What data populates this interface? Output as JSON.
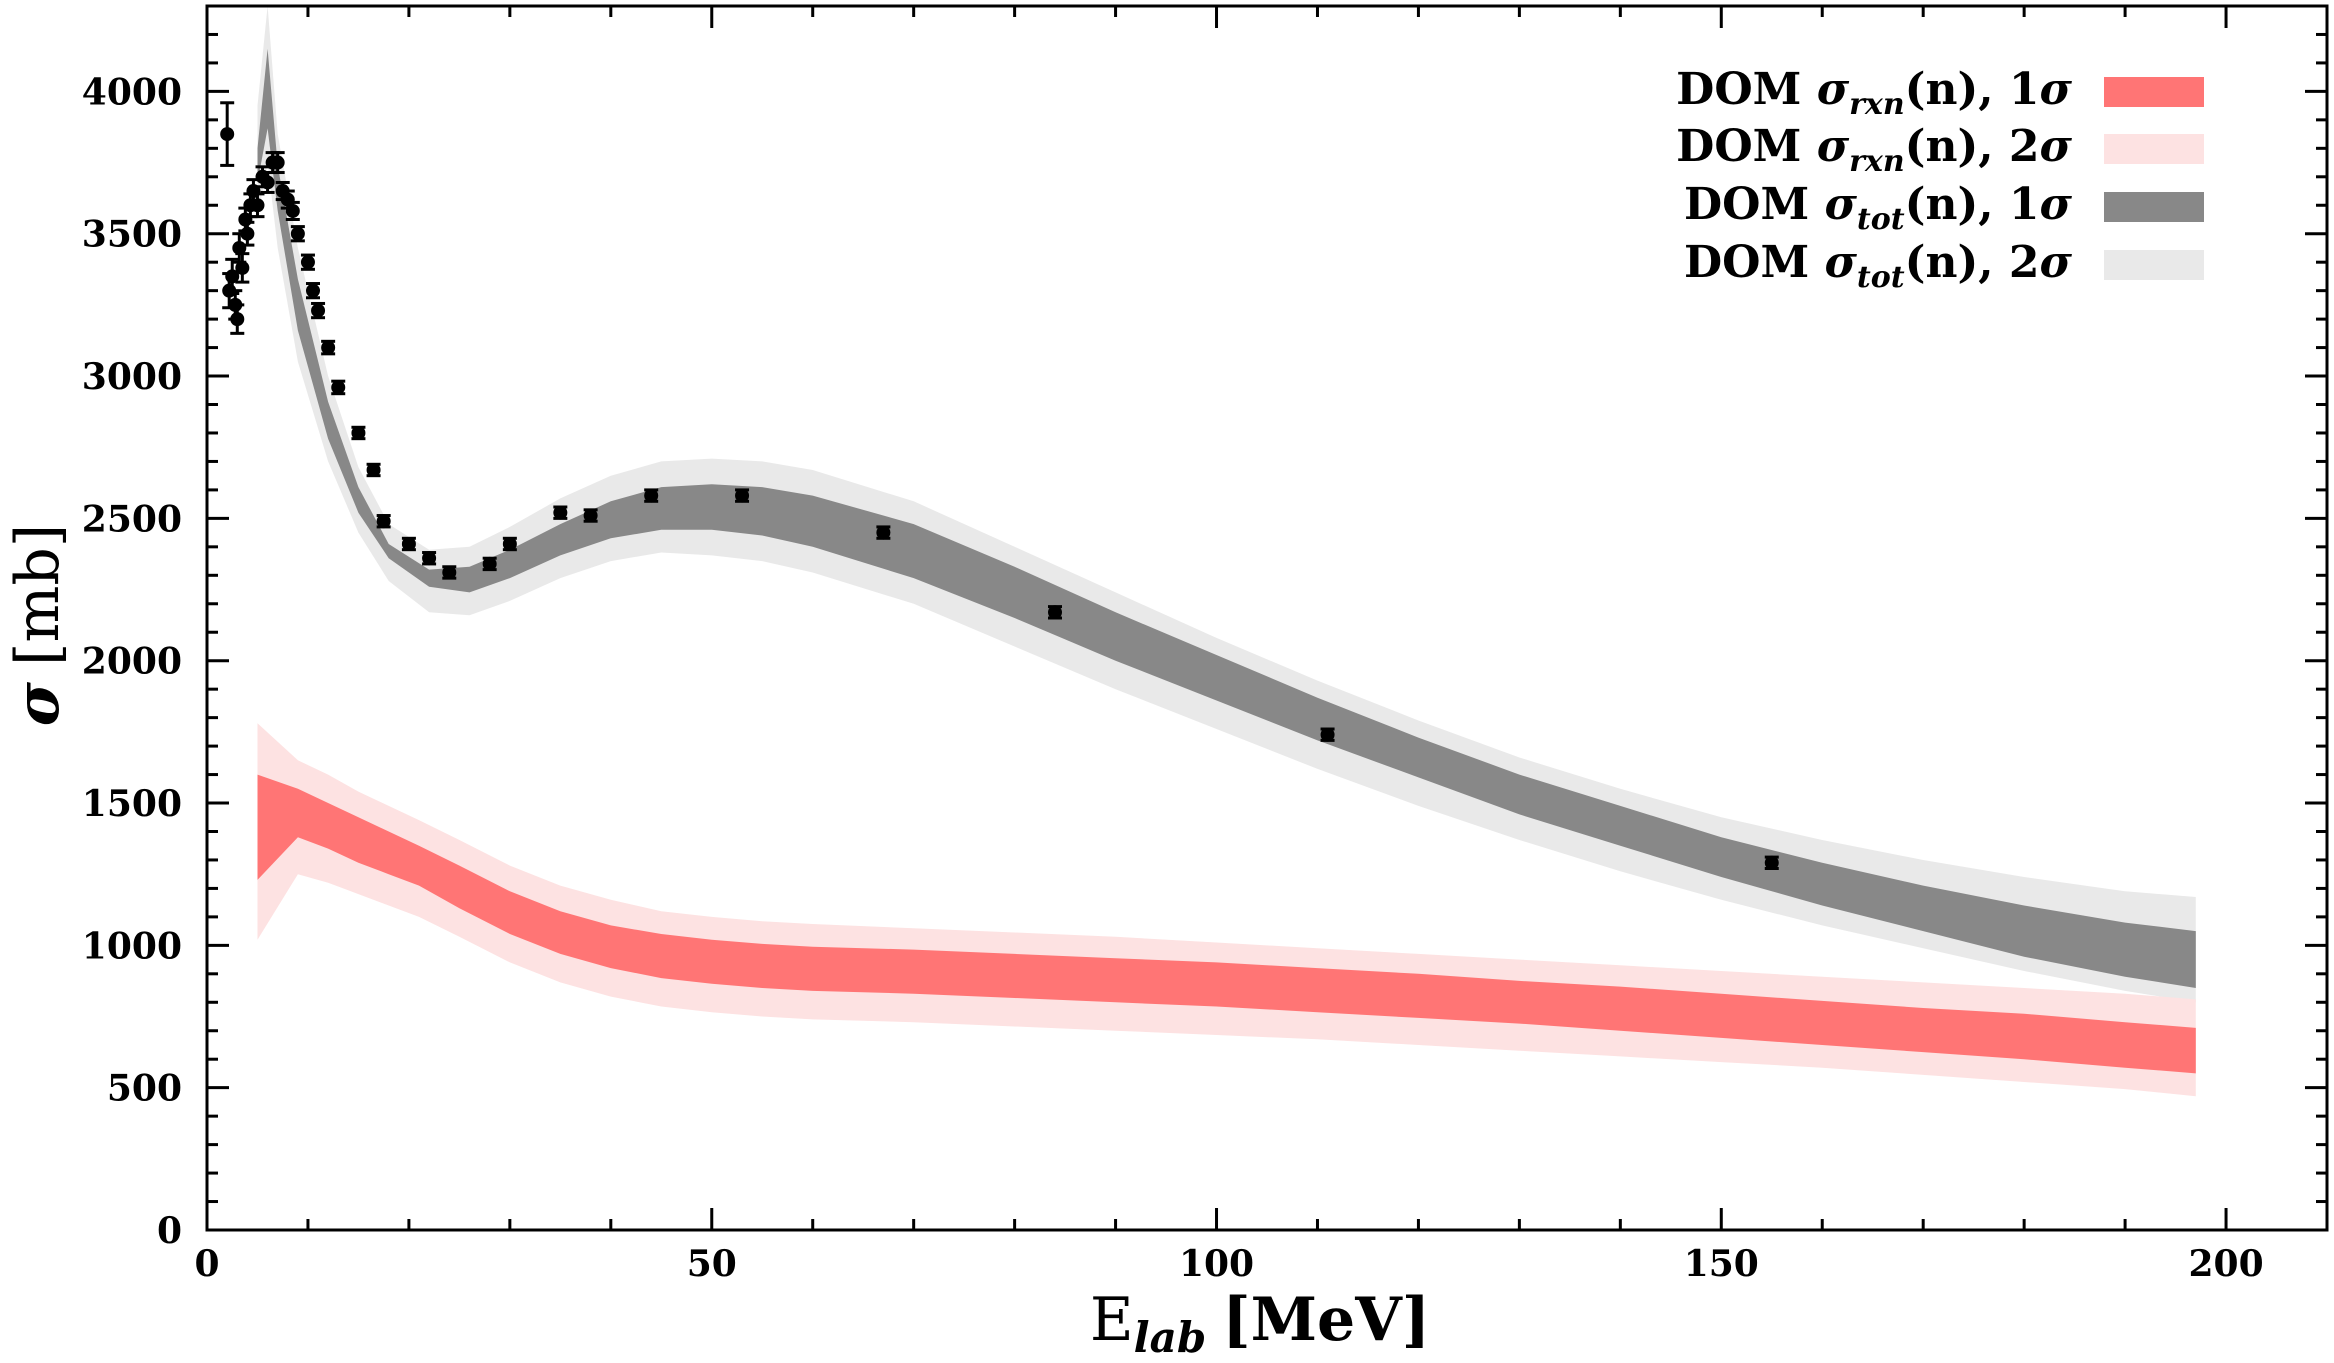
{
  "chart_data": {
    "type": "area",
    "xlabel": "E",
    "xlabel_sub": "lab",
    "xlabel_unit": "[MeV]",
    "ylabel": "σ",
    "ylabel_unit": "[mb]",
    "xlim": [
      0,
      210
    ],
    "ylim": [
      0,
      4300
    ],
    "xticks": [
      0,
      50,
      100,
      150,
      200
    ],
    "yticks": [
      0,
      500,
      1000,
      1500,
      2000,
      2500,
      3000,
      3500,
      4000
    ],
    "grid": false,
    "legend_position": "top-right",
    "colors": {
      "rxn_1sigma": "#ff7575",
      "rxn_2sigma": "#fde2e2",
      "tot_1sigma": "#888888",
      "tot_2sigma": "#e9e9e9",
      "data": "#000000"
    },
    "legend": [
      {
        "prefix": "DOM ",
        "sub": "rxn",
        "suffix": "(n), 1",
        "key": "rxn_1sigma"
      },
      {
        "prefix": "DOM ",
        "sub": "rxn",
        "suffix": "(n), 2",
        "key": "rxn_2sigma"
      },
      {
        "prefix": "DOM ",
        "sub": "tot",
        "suffix": "(n), 1",
        "key": "tot_1sigma"
      },
      {
        "prefix": "DOM ",
        "sub": "tot",
        "suffix": "(n), 2",
        "key": "tot_2sigma"
      }
    ],
    "bands": [
      {
        "key": "tot_2sigma",
        "x": [
          5,
          6,
          7,
          9,
          12,
          15,
          18,
          22,
          26,
          30,
          35,
          40,
          45,
          50,
          55,
          60,
          70,
          80,
          90,
          100,
          110,
          120,
          130,
          140,
          150,
          160,
          170,
          180,
          190,
          197
        ],
        "lower": [
          3550,
          3750,
          3450,
          3050,
          2700,
          2450,
          2280,
          2170,
          2160,
          2210,
          2290,
          2350,
          2380,
          2370,
          2350,
          2310,
          2200,
          2050,
          1900,
          1760,
          1620,
          1490,
          1370,
          1260,
          1160,
          1070,
          990,
          910,
          840,
          800
        ],
        "upper": [
          3950,
          4300,
          3850,
          3450,
          3000,
          2680,
          2480,
          2390,
          2400,
          2470,
          2570,
          2650,
          2700,
          2710,
          2700,
          2670,
          2560,
          2400,
          2240,
          2080,
          1930,
          1790,
          1660,
          1550,
          1450,
          1370,
          1300,
          1240,
          1190,
          1170
        ]
      },
      {
        "key": "tot_1sigma",
        "x": [
          5,
          6,
          7,
          9,
          12,
          15,
          18,
          22,
          26,
          30,
          35,
          40,
          45,
          50,
          55,
          60,
          70,
          80,
          90,
          100,
          110,
          120,
          130,
          140,
          150,
          160,
          170,
          180,
          190,
          197
        ],
        "lower": [
          3680,
          3870,
          3580,
          3160,
          2780,
          2520,
          2360,
          2260,
          2240,
          2290,
          2370,
          2430,
          2460,
          2460,
          2440,
          2400,
          2290,
          2150,
          2000,
          1860,
          1720,
          1590,
          1460,
          1350,
          1240,
          1140,
          1050,
          960,
          890,
          850
        ],
        "upper": [
          3800,
          4150,
          3740,
          3340,
          2910,
          2610,
          2410,
          2320,
          2330,
          2390,
          2480,
          2560,
          2610,
          2620,
          2610,
          2580,
          2480,
          2330,
          2170,
          2020,
          1870,
          1730,
          1600,
          1490,
          1380,
          1290,
          1210,
          1140,
          1080,
          1050
        ]
      },
      {
        "key": "rxn_2sigma",
        "x": [
          5,
          9,
          12,
          15,
          18,
          21,
          25,
          30,
          35,
          40,
          45,
          50,
          55,
          60,
          70,
          80,
          90,
          100,
          110,
          120,
          130,
          140,
          150,
          160,
          170,
          180,
          190,
          197
        ],
        "lower": [
          1020,
          1250,
          1220,
          1180,
          1140,
          1100,
          1030,
          940,
          870,
          820,
          785,
          765,
          750,
          740,
          730,
          715,
          700,
          685,
          670,
          650,
          630,
          610,
          590,
          570,
          545,
          520,
          495,
          470
        ],
        "upper": [
          1780,
          1650,
          1600,
          1540,
          1490,
          1440,
          1370,
          1280,
          1210,
          1160,
          1120,
          1100,
          1085,
          1075,
          1060,
          1045,
          1030,
          1010,
          990,
          970,
          950,
          930,
          910,
          890,
          870,
          850,
          830,
          810
        ]
      },
      {
        "key": "rxn_1sigma",
        "x": [
          5,
          9,
          12,
          15,
          18,
          21,
          25,
          30,
          35,
          40,
          45,
          50,
          55,
          60,
          70,
          80,
          90,
          100,
          110,
          120,
          130,
          140,
          150,
          160,
          170,
          180,
          190,
          197
        ],
        "lower": [
          1230,
          1380,
          1340,
          1290,
          1250,
          1210,
          1130,
          1040,
          970,
          920,
          885,
          865,
          850,
          840,
          830,
          815,
          800,
          785,
          765,
          745,
          725,
          700,
          675,
          650,
          625,
          600,
          570,
          550
        ],
        "upper": [
          1600,
          1550,
          1500,
          1450,
          1400,
          1350,
          1280,
          1190,
          1120,
          1070,
          1040,
          1020,
          1005,
          995,
          985,
          970,
          955,
          940,
          920,
          900,
          875,
          855,
          830,
          805,
          780,
          760,
          730,
          710
        ]
      }
    ],
    "data_points": {
      "x": [
        2.0,
        2.2,
        2.5,
        2.8,
        3.0,
        3.2,
        3.5,
        3.8,
        4.0,
        4.3,
        4.6,
        5.0,
        5.5,
        6.0,
        6.5,
        7.0,
        7.5,
        8.0,
        8.5,
        9.0,
        10.0,
        10.5,
        11.0,
        12.0,
        13.0,
        15.0,
        16.5,
        17.5,
        20.0,
        22.0,
        24.0,
        28.0,
        30.0,
        35.0,
        38.0,
        44.0,
        53.0,
        67.0,
        84.0,
        111.0,
        155.0
      ],
      "y": [
        3850,
        3300,
        3350,
        3250,
        3200,
        3450,
        3380,
        3550,
        3500,
        3600,
        3650,
        3600,
        3700,
        3680,
        3750,
        3750,
        3650,
        3620,
        3580,
        3500,
        3400,
        3300,
        3230,
        3100,
        2960,
        2800,
        2670,
        2490,
        2410,
        2360,
        2310,
        2340,
        2410,
        2520,
        2510,
        2580,
        2580,
        2450,
        2170,
        1740,
        1290
      ],
      "err": [
        110,
        60,
        60,
        50,
        50,
        50,
        50,
        40,
        40,
        40,
        40,
        40,
        35,
        35,
        35,
        35,
        30,
        30,
        30,
        25,
        25,
        25,
        25,
        22,
        22,
        20,
        20,
        20,
        20,
        20,
        20,
        20,
        20,
        20,
        20,
        20,
        20,
        20,
        20,
        20,
        20
      ]
    }
  }
}
